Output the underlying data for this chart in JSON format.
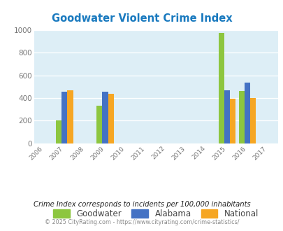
{
  "title": "Goodwater Violent Crime Index",
  "title_color": "#1a7abf",
  "years": [
    2006,
    2007,
    2008,
    2009,
    2010,
    2011,
    2012,
    2013,
    2014,
    2015,
    2016,
    2017
  ],
  "data_years": [
    2007,
    2009,
    2015,
    2016
  ],
  "goodwater": [
    200,
    330,
    975,
    460
  ],
  "alabama": [
    455,
    455,
    468,
    533
  ],
  "national": [
    468,
    435,
    392,
    400
  ],
  "goodwater_color": "#8dc63f",
  "alabama_color": "#4472c4",
  "national_color": "#f6a623",
  "ylim": [
    0,
    1000
  ],
  "yticks": [
    0,
    200,
    400,
    600,
    800,
    1000
  ],
  "bg_color": "#ddeef6",
  "grid_color": "#c8dde8",
  "legend_labels": [
    "Goodwater",
    "Alabama",
    "National"
  ],
  "footnote": "Crime Index corresponds to incidents per 100,000 inhabitants",
  "footnote_color": "#222222",
  "copyright": "© 2025 CityRating.com - https://www.cityrating.com/crime-statistics/",
  "copyright_color": "#888888",
  "bar_width": 0.28
}
